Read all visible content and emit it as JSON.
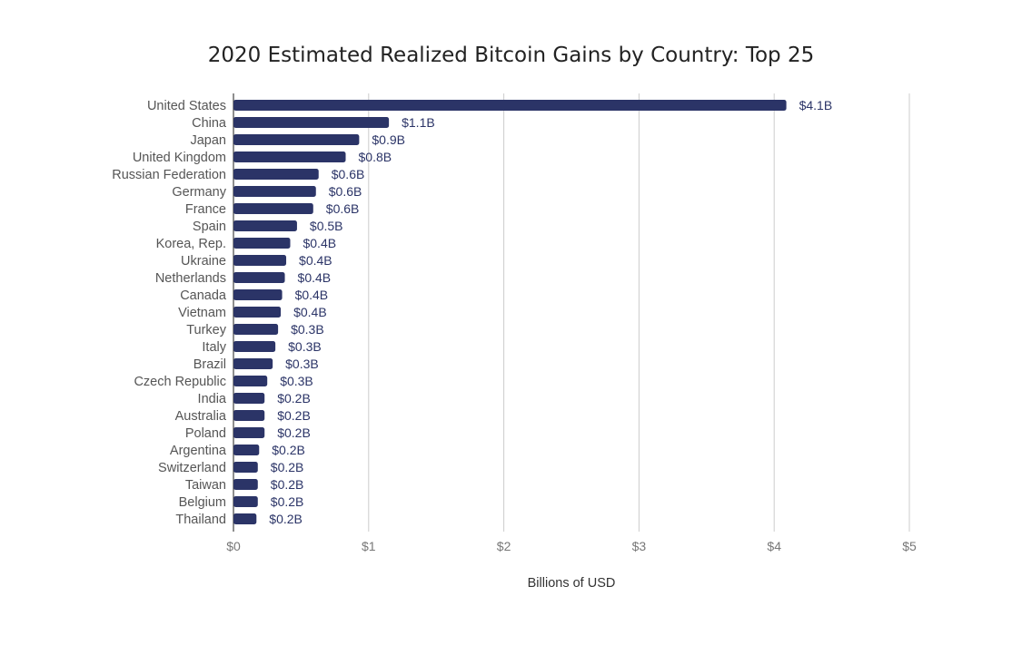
{
  "chart_data": {
    "type": "bar",
    "orientation": "horizontal",
    "title": "2020 Estimated Realized Bitcoin Gains by Country: Top 25",
    "xlabel": "Billions of USD",
    "ylabel": "",
    "xlim": [
      0,
      5
    ],
    "xticks": [
      0,
      1,
      2,
      3,
      4,
      5
    ],
    "xtick_labels": [
      "$0",
      "$1",
      "$2",
      "$3",
      "$4",
      "$5"
    ],
    "grid": "vertical",
    "categories": [
      "United States",
      "China",
      "Japan",
      "United Kingdom",
      "Russian Federation",
      "Germany",
      "France",
      "Spain",
      "Korea, Rep.",
      "Ukraine",
      "Netherlands",
      "Canada",
      "Vietnam",
      "Turkey",
      "Italy",
      "Brazil",
      "Czech Republic",
      "India",
      "Australia",
      "Poland",
      "Argentina",
      "Switzerland",
      "Taiwan",
      "Belgium",
      "Thailand"
    ],
    "values": [
      4.09,
      1.15,
      0.93,
      0.83,
      0.63,
      0.61,
      0.59,
      0.47,
      0.42,
      0.39,
      0.38,
      0.36,
      0.35,
      0.33,
      0.31,
      0.29,
      0.25,
      0.23,
      0.23,
      0.23,
      0.19,
      0.18,
      0.18,
      0.18,
      0.17
    ],
    "data_labels": [
      "$4.1B",
      "$1.1B",
      "$0.9B",
      "$0.8B",
      "$0.6B",
      "$0.6B",
      "$0.6B",
      "$0.5B",
      "$0.4B",
      "$0.4B",
      "$0.4B",
      "$0.4B",
      "$0.4B",
      "$0.3B",
      "$0.3B",
      "$0.3B",
      "$0.3B",
      "$0.2B",
      "$0.2B",
      "$0.2B",
      "$0.2B",
      "$0.2B",
      "$0.2B",
      "$0.2B",
      "$0.2B"
    ],
    "colors": {
      "bar": "#2b3467",
      "label": "#2b3467",
      "category_text": "#555555",
      "tick_text": "#777777",
      "grid": "#cccccc",
      "axis": "#444444",
      "title": "#222222",
      "xlabel": "#333333"
    }
  }
}
